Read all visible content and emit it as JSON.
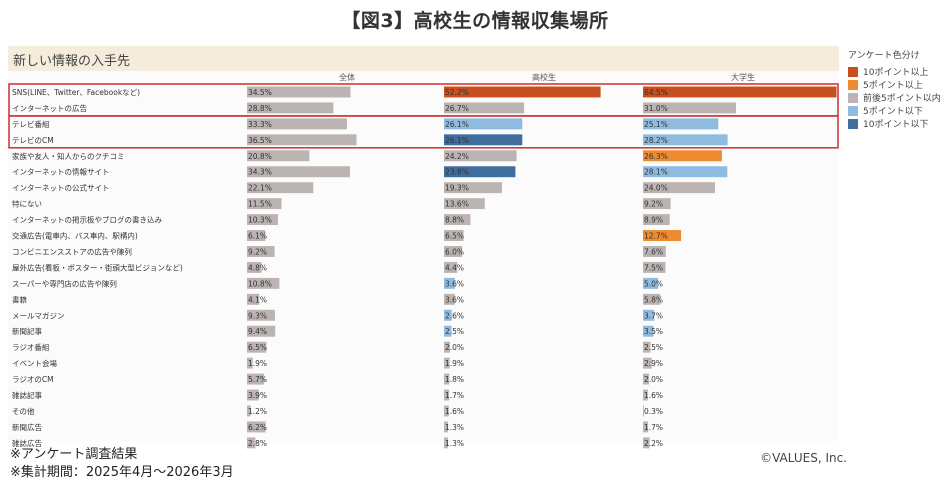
{
  "page": {
    "title": "【図3】高校生の情報収集場所",
    "panel_title": "新しい情報の入手先",
    "footnote1": "※アンケート調査結果",
    "footnote2": "※集計期間：2025年4月〜2026年3月",
    "copyright": "©VALUES, Inc."
  },
  "legend": {
    "title": "アンケート色分け",
    "items": [
      {
        "label": "10ポイント以上",
        "color": "#c8501e"
      },
      {
        "label": "5ポイント以上",
        "color": "#ee8a2f"
      },
      {
        "label": "前後5ポイント以内",
        "color": "#bbb4b2"
      },
      {
        "label": "5ポイント以下",
        "color": "#8fbbe1"
      },
      {
        "label": "10ポイント以下",
        "color": "#3f6d9d"
      }
    ]
  },
  "chart_data": {
    "type": "bar",
    "title": "新しい情報の入手先",
    "columns": [
      "全体",
      "高校生",
      "大学生"
    ],
    "categories": [
      "SNS(LINE、Twitter、Facebookなど)",
      "インターネットの広告",
      "テレビ番組",
      "テレビのCM",
      "家族や友人・知人からのクチコミ",
      "インターネットの情報サイト",
      "インターネットの公式サイト",
      "特にない",
      "インターネットの掲示板やブログの書き込み",
      "交通広告(電車内、バス車内、駅構内)",
      "コンビニエンスストアの広告や陳列",
      "屋外広告(看板・ポスター・街頭大型ビジョンなど)",
      "スーパーや専門店の広告や陳列",
      "書籍",
      "メールマガジン",
      "新聞記事",
      "ラジオ番組",
      "イベント会場",
      "ラジオのCM",
      "雑誌記事",
      "その他",
      "新聞広告",
      "雑誌広告"
    ],
    "series": [
      {
        "name": "全体",
        "values": [
          34.5,
          28.8,
          33.3,
          36.5,
          20.8,
          34.3,
          22.1,
          11.5,
          10.3,
          6.1,
          9.2,
          4.8,
          10.8,
          4.1,
          9.3,
          9.4,
          6.5,
          1.9,
          5.7,
          3.9,
          1.2,
          6.2,
          2.8
        ],
        "labels": [
          "34.5%",
          "28.8%",
          "33.3%",
          "36.5%",
          "20.8%",
          "34.3%",
          "22.1%",
          "11.5%",
          "10.3%",
          "6.1%",
          "9.2%",
          "4.8%",
          "10.8%",
          "4.1%",
          "9.3%",
          "9.4%",
          "6.5%",
          "1.9%",
          "5.7%",
          "3.9%",
          "1.2%",
          "6.2%",
          "2.8%"
        ],
        "colors": [
          "grey",
          "grey",
          "grey",
          "grey",
          "grey",
          "grey",
          "grey",
          "grey",
          "grey",
          "grey",
          "grey",
          "grey",
          "grey",
          "grey",
          "grey",
          "grey",
          "grey",
          "grey",
          "grey",
          "grey",
          "grey",
          "grey",
          "grey"
        ]
      },
      {
        "name": "高校生",
        "values": [
          52.2,
          26.7,
          26.1,
          26.1,
          24.2,
          23.8,
          19.3,
          13.6,
          8.8,
          6.5,
          6.0,
          4.4,
          3.6,
          3.6,
          2.6,
          2.5,
          2.0,
          1.9,
          1.8,
          1.7,
          1.6,
          1.3,
          1.3
        ],
        "labels": [
          "52.2%",
          "26.7%",
          "26.1%",
          "26.1%",
          "24.2%",
          "23.8%",
          "19.3%",
          "13.6%",
          "8.8%",
          "6.5%",
          "6.0%",
          "4.4%",
          "3.6%",
          "3.6%",
          "2.6%",
          "2.5%",
          "2.0%",
          "1.9%",
          "1.8%",
          "1.7%",
          "1.6%",
          "1.3%",
          "1.3%"
        ],
        "colors": [
          "up10",
          "grey",
          "down5",
          "down10",
          "grey",
          "down10",
          "grey",
          "grey",
          "grey",
          "grey",
          "grey",
          "grey",
          "down5",
          "grey",
          "down5",
          "down5",
          "grey",
          "grey",
          "grey",
          "grey",
          "grey",
          "grey",
          "grey"
        ]
      },
      {
        "name": "大学生",
        "values": [
          64.5,
          31.0,
          25.1,
          28.2,
          26.3,
          28.1,
          24.0,
          9.2,
          8.9,
          12.7,
          7.6,
          7.5,
          5.0,
          5.8,
          3.7,
          3.5,
          2.5,
          2.9,
          2.0,
          1.6,
          0.3,
          1.7,
          2.2
        ],
        "labels": [
          "64.5%",
          "31.0%",
          "25.1%",
          "28.2%",
          "26.3%",
          "28.1%",
          "24.0%",
          "9.2%",
          "8.9%",
          "12.7%",
          "7.6%",
          "7.5%",
          "5.0%",
          "5.8%",
          "3.7%",
          "3.5%",
          "2.5%",
          "2.9%",
          "2.0%",
          "1.6%",
          "0.3%",
          "1.7%",
          "2.2%"
        ],
        "colors": [
          "up10",
          "grey",
          "down5",
          "down5",
          "up5",
          "down5",
          "grey",
          "grey",
          "grey",
          "up5",
          "grey",
          "grey",
          "down5",
          "grey",
          "down5",
          "down5",
          "grey",
          "grey",
          "grey",
          "grey",
          "grey",
          "grey",
          "grey"
        ]
      }
    ],
    "color_map": {
      "up10": "#c8501e",
      "up5": "#ee8a2f",
      "grey": "#bbb4b2",
      "down5": "#8fbbe1",
      "down10": "#3f6d9d"
    },
    "highlight_groups": [
      [
        0,
        1
      ],
      [
        2,
        3
      ]
    ],
    "xlim": [
      0,
      70
    ],
    "legend_position": "right"
  }
}
